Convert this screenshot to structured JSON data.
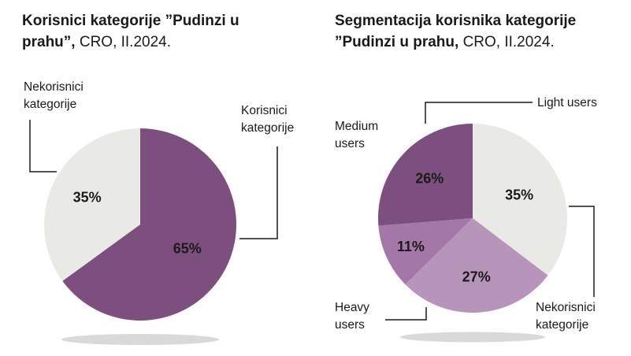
{
  "chart_data": [
    {
      "type": "pie",
      "title_bold": "Korisnici kategorije ”Pudinzi u prahu”,",
      "title_rest": "CRO, II.2024.",
      "slices": [
        {
          "label": "Korisnici kategorije",
          "value": 65,
          "color": "#7d4f7f"
        },
        {
          "label": "Nekorisnici kategorije",
          "value": 35,
          "color": "#e9e9e6"
        }
      ],
      "start_angle_deg": 0,
      "clockwise": true,
      "legend_position": "callouts",
      "callouts": [
        {
          "target": "Nekorisnici kategorije",
          "text": "Nekorisnici\nkategorije"
        },
        {
          "target": "Korisnici kategorije",
          "text": "Korisnici\nkategorije"
        }
      ]
    },
    {
      "type": "pie",
      "title_bold": "Segmentacija korisnika kategorije ”Pudinzi u prahu,",
      "title_rest": "CRO, II.2024.",
      "slices": [
        {
          "label": "Nekorisnici kategorije",
          "value": 35,
          "color": "#e9e9e6"
        },
        {
          "label": "Heavy users",
          "value": 27,
          "color": "#b795ba"
        },
        {
          "label": "Medium users",
          "value": 11,
          "color": "#a478a6"
        },
        {
          "label": "Light users",
          "value": 26,
          "color": "#7d4f7f"
        }
      ],
      "start_angle_deg": 0,
      "clockwise": true,
      "legend_position": "callouts",
      "callouts": [
        {
          "target": "Light users",
          "text": "Light users"
        },
        {
          "target": "Medium users",
          "text": "Medium\nusers"
        },
        {
          "target": "Heavy users",
          "text": "Heavy\nusers"
        },
        {
          "target": "Nekorisnici kategorije",
          "text": "Nekorisnici\nkategorije"
        }
      ]
    }
  ],
  "colors": {
    "dark_purple": "#7d4f7f",
    "medium_purple": "#a478a6",
    "light_purple": "#b795ba",
    "gray_slice": "#e9e9e6",
    "text": "#1a1a1a",
    "shadow": "#d9d9d9"
  }
}
